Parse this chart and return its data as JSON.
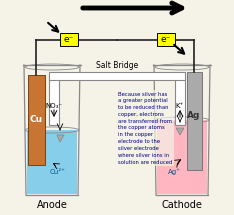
{
  "bg_color": "#f5f2e8",
  "anode_label": "Anode",
  "cathode_label": "Cathode",
  "salt_bridge_label": "Salt Bridge",
  "no3_label": "NO₃⁻",
  "k_label": "K⁺",
  "cu_electrode_color": "#c87533",
  "ag_electrode_color": "#aaaaaa",
  "cu_solution_color": "#87ceeb",
  "ag_solution_color": "#ffb6c1",
  "cu_label": "Cu",
  "ag_label": "Ag",
  "cu2_label": "Cu²⁺",
  "ag_ion_label": "Ag⁺",
  "electron_box_color": "#ffff00",
  "electron_label_left": "e⁻",
  "electron_label_right": "e⁻",
  "annotation_text": "Because silver has\na greater potential\nto be reduced than\ncopper, electrons\nare transferred from\nthe copper atoms\nin the copper\nelectrode to the\nsilver electrode\nwhere silver ions in\nsolution are reduced",
  "annotation_color": "#000088",
  "wire_color": "#222222",
  "beaker_color": "#888888",
  "salt_bridge_fill": "#ffffff"
}
